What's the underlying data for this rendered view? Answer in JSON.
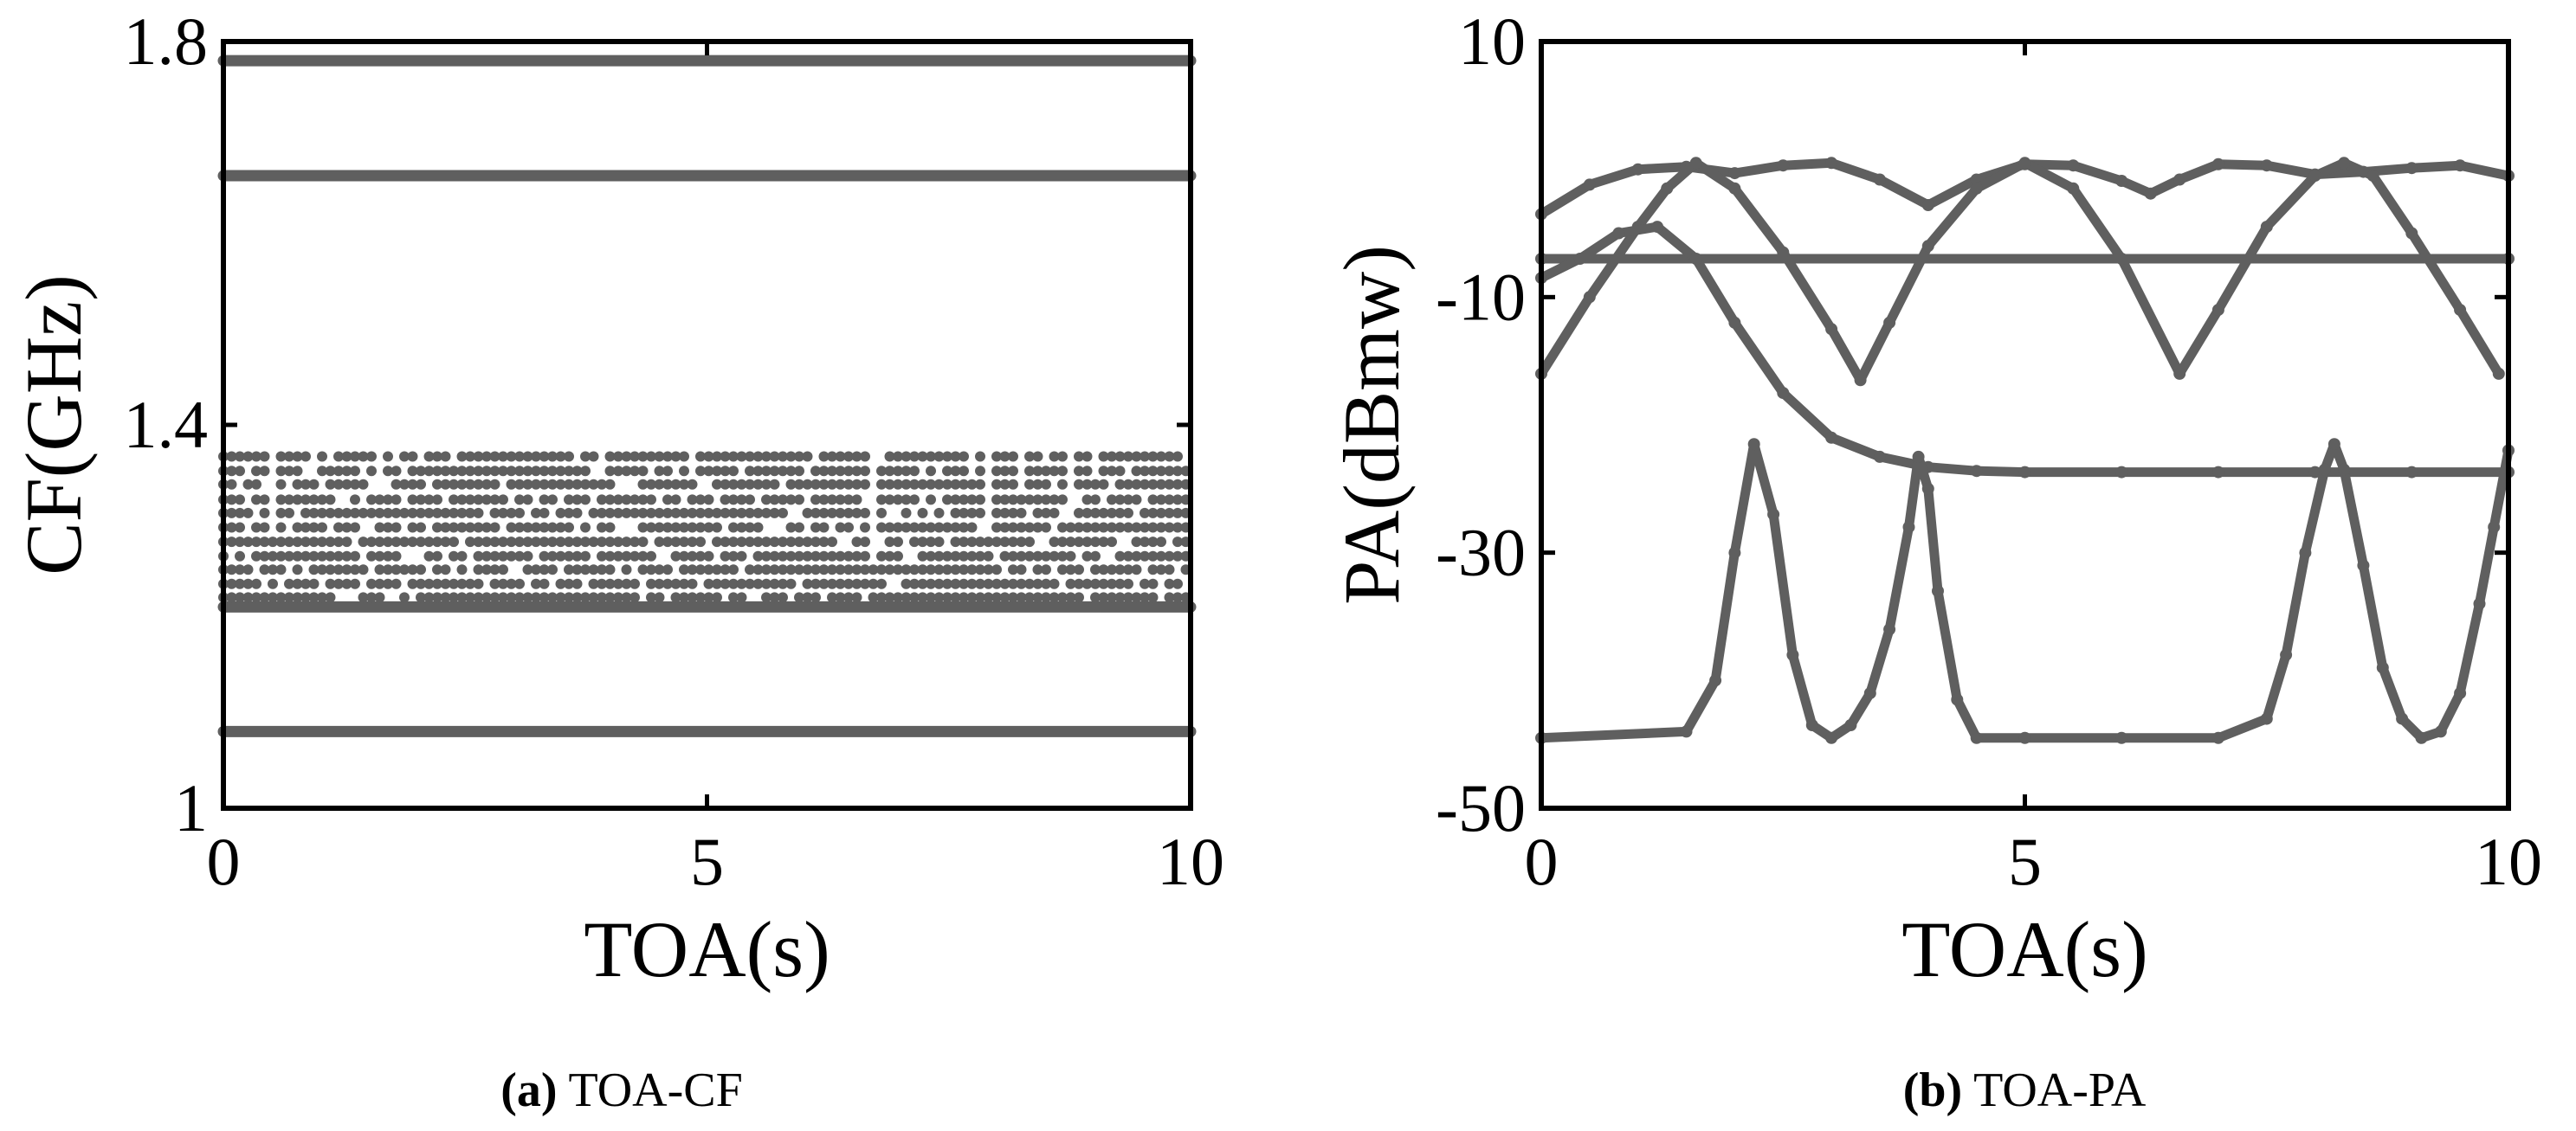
{
  "chart_data": [
    {
      "panel": "a",
      "type": "scatter",
      "caption_letter": "(a)",
      "caption_text": " TOA-CF",
      "xlabel": "TOA(s)",
      "ylabel": "CF(GHz)",
      "xlim": [
        0,
        10
      ],
      "ylim": [
        1.0,
        1.8
      ],
      "xticks": [
        0,
        5,
        10
      ],
      "xtick_labels": [
        "0",
        "5",
        "10"
      ],
      "yticks": [
        1.0,
        1.4,
        1.8
      ],
      "ytick_labels": [
        "1",
        "1.4",
        "1.8"
      ],
      "grid": false,
      "marker_color": "#5f5f5f",
      "solid_levels": [
        1.78,
        1.66,
        1.08,
        1.21
      ],
      "dotted_levels": [
        1.367,
        1.352,
        1.338,
        1.322,
        1.308,
        1.293,
        1.278,
        1.263,
        1.249,
        1.234,
        1.22
      ],
      "x_range": [
        0,
        10
      ]
    },
    {
      "panel": "b",
      "type": "scatter",
      "caption_letter": "(b)",
      "caption_text": " TOA-PA",
      "xlabel": "TOA(s)",
      "ylabel": "PA(dBmw)",
      "xlim": [
        0,
        10
      ],
      "ylim": [
        -50,
        10
      ],
      "xticks": [
        0,
        5,
        10
      ],
      "xtick_labels": [
        "0",
        "5",
        "10"
      ],
      "yticks": [
        -50,
        -30,
        -10,
        10
      ],
      "ytick_labels": [
        "-50",
        "-30",
        "-10",
        "10"
      ],
      "grid": false,
      "marker_color": "#5f5f5f",
      "series": [
        {
          "x": [
            0,
            0.5,
            1.0,
            1.5,
            2.0,
            2.5,
            3.0,
            3.5,
            4.0,
            4.5,
            5.0,
            5.5,
            6.0,
            6.3,
            6.6,
            7.0,
            7.5,
            8.0,
            8.5,
            9.0,
            9.5,
            10.0
          ],
          "y": [
            -3.5,
            -1.2,
            0.0,
            0.2,
            -0.3,
            0.3,
            0.5,
            -0.8,
            -2.8,
            -0.8,
            0.4,
            0.3,
            -0.9,
            -1.9,
            -0.8,
            0.4,
            0.3,
            -0.4,
            -0.2,
            0.1,
            0.3,
            -0.5
          ]
        },
        {
          "x": [
            0,
            0.5,
            1.0,
            1.3,
            1.6,
            2.0,
            2.5,
            3.0,
            3.3,
            3.6,
            4.0,
            4.5,
            5.0,
            5.5,
            6.0,
            6.6,
            7.0,
            7.5,
            8.0,
            8.3,
            8.6,
            9.0,
            9.5,
            9.9
          ],
          "y": [
            -16,
            -10,
            -4.5,
            -1.5,
            0.5,
            -1.5,
            -6.5,
            -12.5,
            -16.5,
            -12,
            -6,
            -1.5,
            0.5,
            -1.5,
            -7,
            -16,
            -11,
            -4.5,
            -0.5,
            0.5,
            -0.5,
            -5,
            -11,
            -16
          ]
        },
        {
          "x": [
            0,
            10
          ],
          "y": [
            -7.0,
            -7.0
          ]
        },
        {
          "x": [
            0,
            0.4,
            0.8,
            1.2,
            1.6,
            2.0,
            2.5,
            3.0,
            3.5,
            4.0,
            4.5,
            5.0,
            6.0,
            7.0,
            8.0,
            9.0,
            10.0
          ],
          "y": [
            -8.5,
            -7.0,
            -5.0,
            -4.5,
            -7.0,
            -12.0,
            -17.5,
            -21.0,
            -22.5,
            -23.3,
            -23.6,
            -23.7,
            -23.7,
            -23.7,
            -23.7,
            -23.7,
            -23.7
          ]
        },
        {
          "x": [
            0,
            1.5,
            1.8,
            2.0,
            2.2,
            2.4,
            2.6,
            2.8,
            3.0,
            3.2,
            3.4,
            3.6,
            3.8,
            3.9,
            4.0,
            4.1,
            4.3,
            4.5,
            5.0,
            6.0,
            7.0,
            7.5,
            7.7,
            7.9,
            8.1,
            8.2,
            8.3,
            8.5,
            8.7,
            8.9,
            9.1,
            9.3,
            9.5,
            9.7,
            9.85,
            10.0
          ],
          "y": [
            -44.5,
            -44.0,
            -40.0,
            -30.0,
            -21.5,
            -27.0,
            -38.0,
            -43.5,
            -44.5,
            -43.5,
            -41.0,
            -36.0,
            -28.0,
            -22.5,
            -25.0,
            -33.0,
            -41.5,
            -44.5,
            -44.5,
            -44.5,
            -44.5,
            -43.0,
            -38.0,
            -30.0,
            -23.5,
            -21.5,
            -23.5,
            -31.0,
            -39.0,
            -43.0,
            -44.5,
            -44.0,
            -41.0,
            -34.0,
            -28.0,
            -22.0
          ]
        }
      ]
    }
  ]
}
